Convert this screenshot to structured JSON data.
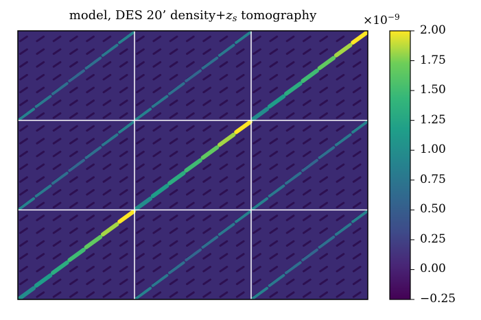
{
  "chart_data": {
    "type": "heatmap",
    "title_main": "model, DES 20’ density+",
    "title_sub": "z",
    "title_subscript": "s",
    "title_end": " tomography",
    "xlabel": "",
    "ylabel": "",
    "block_grid": {
      "rows": 3,
      "cols": 3
    },
    "colorbar": {
      "colormap": "viridis",
      "exponent_label": "×10",
      "exponent_power": "−9",
      "min": -0.25,
      "max": 2.0,
      "ticks": [
        2.0,
        1.75,
        1.5,
        1.25,
        1.0,
        0.75,
        0.5,
        0.25,
        0.0,
        -0.25
      ],
      "tick_labels": [
        "2.00",
        "1.75",
        "1.50",
        "1.25",
        "1.00",
        "0.75",
        "0.50",
        "0.25",
        "0.00",
        "−0.25"
      ]
    }
  }
}
